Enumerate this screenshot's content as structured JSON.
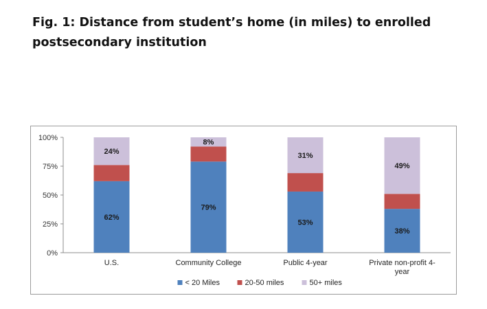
{
  "figure": {
    "title": "Fig. 1: Distance from student’s home (in miles) to enrolled postsecondary institution"
  },
  "chart_data": {
    "type": "bar",
    "stacked": true,
    "categories": [
      "U.S.",
      "Community College",
      "Public 4-year",
      "Private non-profit 4-year"
    ],
    "category_labels": [
      [
        "U.S."
      ],
      [
        "Community College"
      ],
      [
        "Public 4-year"
      ],
      [
        "Private non-profit 4-",
        "year"
      ]
    ],
    "series": [
      {
        "name": "< 20 Miles",
        "values": [
          62,
          79,
          53,
          38
        ],
        "labels": [
          "62%",
          "79%",
          "53%",
          "38%"
        ],
        "color": "#4f81bd"
      },
      {
        "name": "20-50 miles",
        "values": [
          14,
          13,
          16,
          13
        ],
        "labels": [
          "",
          "",
          "",
          ""
        ],
        "color": "#c0504d"
      },
      {
        "name": "50+ miles",
        "values": [
          24,
          8,
          31,
          49
        ],
        "labels": [
          "24%",
          "8%",
          "31%",
          "49%"
        ],
        "color": "#ccc0da"
      }
    ],
    "ylim": [
      0,
      100
    ],
    "yticks": [
      "0%",
      "25%",
      "50%",
      "75%",
      "100%"
    ],
    "xlabel": "",
    "ylabel": "",
    "legend": "bottom",
    "grid": false
  }
}
